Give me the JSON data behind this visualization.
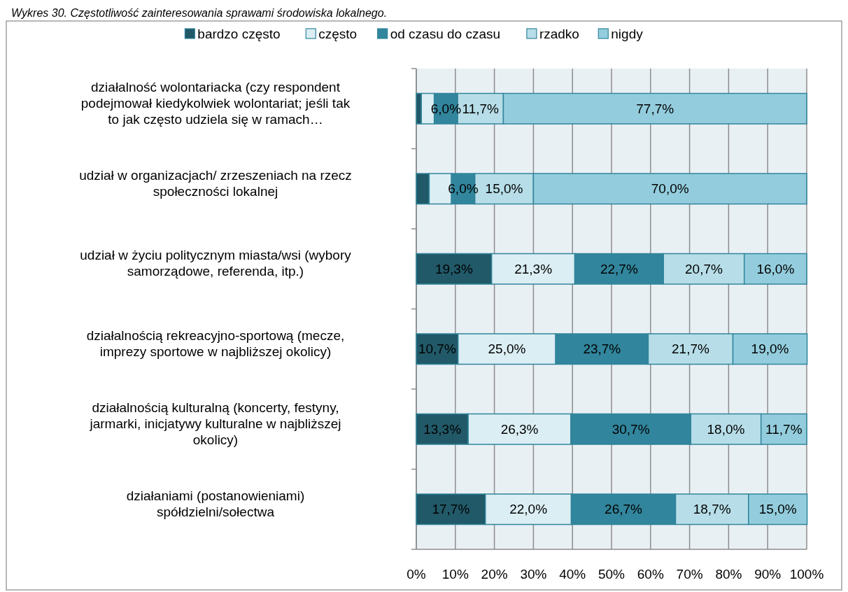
{
  "chart_data": {
    "type": "bar",
    "orientation": "horizontal",
    "stacked": true,
    "title": "Wykres 30. Częstotliwość zainteresowania sprawami środowiska lokalnego.",
    "categories": [
      "działalność wolontariacka (czy respondent podejmował kiedykolwiek wolontariat; jeśli tak to jak często udziela się w ramach…",
      "udział w organizacjach/ zrzeszeniach na rzecz społeczności lokalnej",
      "udział w życiu politycznym miasta/wsi (wybory samorządowe, referenda, itp.)",
      "działalnością rekreacyjno-sportową (mecze, imprezy sportowe w najbliższej okolicy)",
      "działalnością kulturalną (koncerty, festyny, jarmarki, inicjatywy kulturalne w najbliższej okolicy)",
      "działaniami (postanowieniami) spółdzielni/sołectwa"
    ],
    "series": [
      {
        "name": "bardzo często",
        "color": "#215968",
        "values": [
          1.3,
          3.3,
          19.3,
          10.7,
          13.3,
          17.7
        ],
        "value_labels": [
          null,
          null,
          "19,3%",
          "10,7%",
          "13,3%",
          "17,7%"
        ]
      },
      {
        "name": "często",
        "color": "#dbeef4",
        "values": [
          3.3,
          5.7,
          21.3,
          25.0,
          26.3,
          22.0
        ],
        "value_labels": [
          null,
          null,
          "21,3%",
          "25,0%",
          "26,3%",
          "22,0%"
        ]
      },
      {
        "name": "od czasu do czasu",
        "color": "#31859c",
        "values": [
          6.0,
          6.0,
          22.7,
          23.7,
          30.7,
          26.7
        ],
        "value_labels": [
          "6,0%",
          "6,0%",
          "22,7%",
          "23,7%",
          "30,7%",
          "26,7%"
        ]
      },
      {
        "name": "rzadko",
        "color": "#b7dee8",
        "values": [
          11.7,
          15.0,
          20.7,
          21.7,
          18.0,
          18.7
        ],
        "value_labels": [
          "11,7%",
          "15,0%",
          "20,7%",
          "21,7%",
          "18,0%",
          "18,7%"
        ]
      },
      {
        "name": "nigdy",
        "color": "#93cddd",
        "values": [
          77.7,
          70.0,
          16.0,
          19.0,
          11.7,
          15.0
        ],
        "value_labels": [
          "77,7%",
          "70,0%",
          "16,0%",
          "19,0%",
          "11,7%",
          "15,0%"
        ]
      }
    ],
    "xlim": [
      0,
      100
    ],
    "xticks": [
      {
        "value": 0,
        "label": "0%"
      },
      {
        "value": 10,
        "label": "10%"
      },
      {
        "value": 20,
        "label": "20%"
      },
      {
        "value": 30,
        "label": "30%"
      },
      {
        "value": 40,
        "label": "40%"
      },
      {
        "value": 50,
        "label": "50%"
      },
      {
        "value": 60,
        "label": "60%"
      },
      {
        "value": 70,
        "label": "70%"
      },
      {
        "value": 80,
        "label": "80%"
      },
      {
        "value": 90,
        "label": "90%"
      },
      {
        "value": 100,
        "label": "100%"
      }
    ],
    "grid": "x",
    "legend": "top"
  }
}
